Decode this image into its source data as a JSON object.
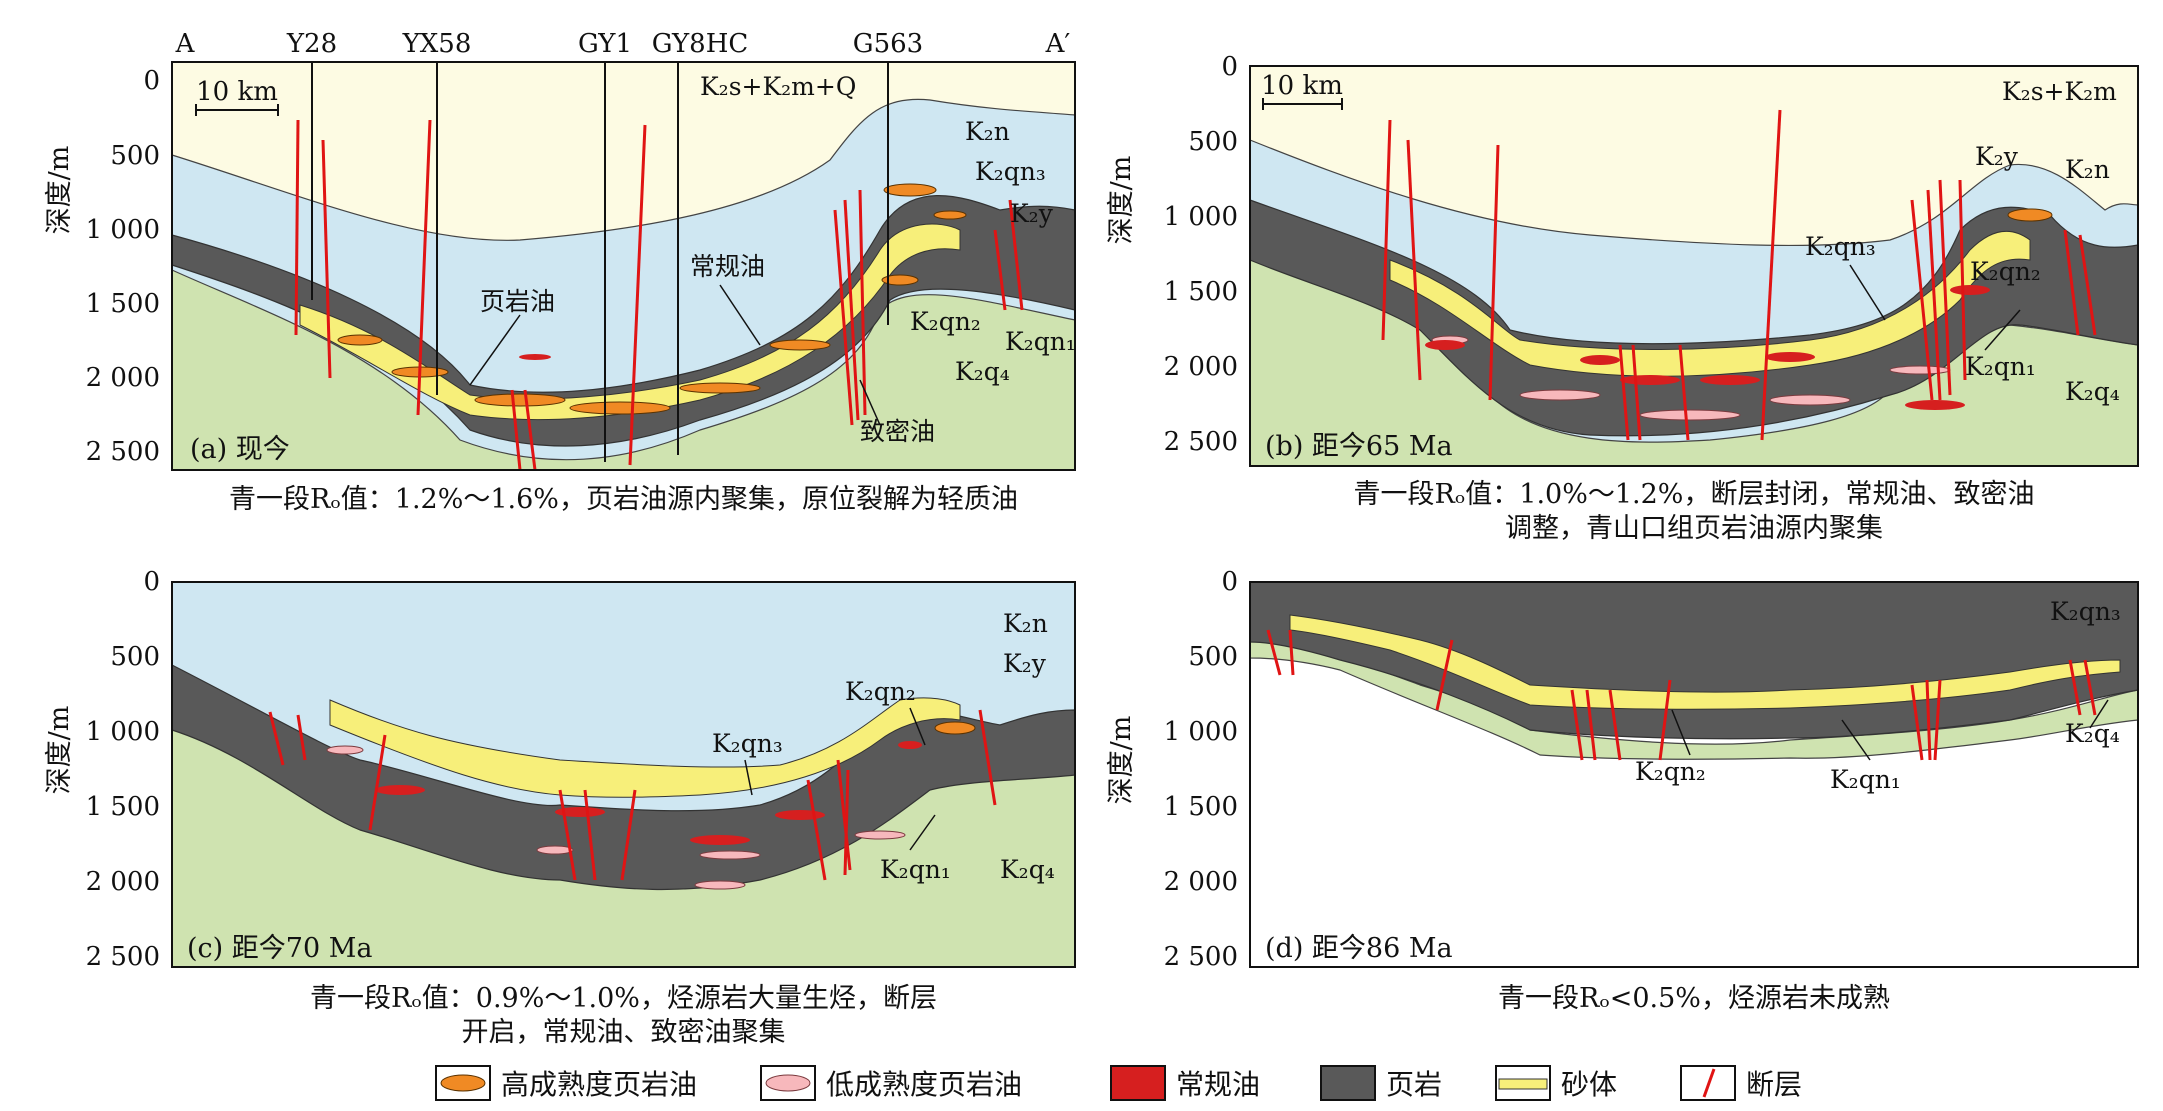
{
  "legend": [
    {
      "label": "高成熟度页岩油",
      "type": "lens",
      "color": "#f08a24"
    },
    {
      "label": "低成熟度页岩油",
      "type": "lens",
      "color": "#f7b8bc"
    },
    {
      "label": "常规油",
      "type": "fill",
      "color": "#d61f1f"
    },
    {
      "label": "页岩",
      "type": "fill",
      "color": "#595959"
    },
    {
      "label": "砂体",
      "type": "sand",
      "color": "#f7ef7a"
    },
    {
      "label": "断层",
      "type": "fault",
      "color": "#e01414"
    }
  ],
  "colors": {
    "upper_fill": "#fdfbe3",
    "blue_layer": "#cfe7f2",
    "shale": "#595959",
    "sand": "#f7ef7a",
    "green_layer": "#cfe3b0",
    "conventional_oil": "#d61f1f",
    "high_shale_oil": "#f08a24",
    "low_shale_oil": "#f7b8bc",
    "fault": "#e01414"
  },
  "axis": {
    "ylabel": "深度/m",
    "ticks": [
      "0",
      "500",
      "1 000",
      "1 500",
      "2 000",
      "2 500"
    ]
  },
  "panels": {
    "a": {
      "label": "(a) 现今",
      "caption": [
        "青一段Rₒ值：1.2%～1.6%，页岩油源内聚集，原位裂解为轻质油"
      ],
      "scale": "10 km",
      "wells": [
        "A",
        "Y28",
        "YX58",
        "GY1",
        "GY8HC",
        "G563",
        "A′"
      ],
      "labels": [
        "K₂s+K₂m+Q",
        "K₂n",
        "K₂qn₃",
        "K₂y",
        "页岩油",
        "常规油",
        "致密油",
        "K₂qn₂",
        "K₂qn₁",
        "K₂q₄"
      ]
    },
    "b": {
      "label": "(b) 距今65 Ma",
      "caption": [
        "青一段Rₒ值：1.0%～1.2%，断层封闭，常规油、致密油",
        "调整，青山口组页岩油源内聚集"
      ],
      "scale": "10 km",
      "labels": [
        "K₂s+K₂m",
        "K₂y",
        "K₂n",
        "K₂qn₃",
        "K₂qn₂",
        "K₂qn₁",
        "K₂q₄"
      ]
    },
    "c": {
      "label": "(c) 距今70 Ma",
      "caption": [
        "青一段Rₒ值：0.9%～1.0%，烃源岩大量生烃，断层",
        "开启，常规油、致密油聚集"
      ],
      "labels": [
        "K₂n",
        "K₂y",
        "K₂qn₂",
        "K₂qn₃",
        "K₂qn₁",
        "K₂q₄"
      ]
    },
    "d": {
      "label": "(d) 距今86 Ma",
      "caption": [
        "青一段Rₒ<0.5%，烃源岩未成熟"
      ],
      "labels": [
        "K₂qn₃",
        "K₂q₄",
        "K₂qn₂",
        "K₂qn₁"
      ]
    }
  }
}
